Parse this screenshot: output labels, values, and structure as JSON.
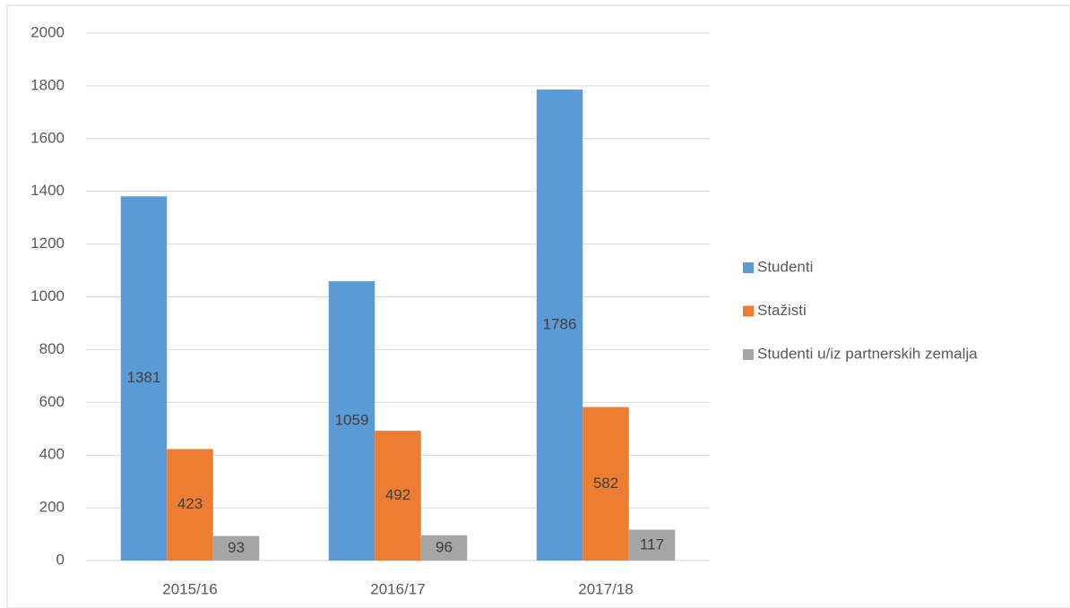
{
  "chart_data": {
    "type": "bar",
    "categories": [
      "2015/16",
      "2016/17",
      "2017/18"
    ],
    "series": [
      {
        "name": "Studenti",
        "color": "#5b9bd5",
        "values": [
          1381,
          1059,
          1786
        ]
      },
      {
        "name": "Stažisti",
        "color": "#ed7d31",
        "values": [
          423,
          492,
          582
        ]
      },
      {
        "name": "Studenti u/iz partnerskih zemalja",
        "color": "#a5a5a5",
        "values": [
          93,
          96,
          117
        ]
      }
    ],
    "ylim": [
      0,
      2000
    ],
    "yticks": [
      0,
      200,
      400,
      600,
      800,
      1000,
      1200,
      1400,
      1600,
      1800,
      2000
    ],
    "grid": true,
    "legend": "right"
  }
}
